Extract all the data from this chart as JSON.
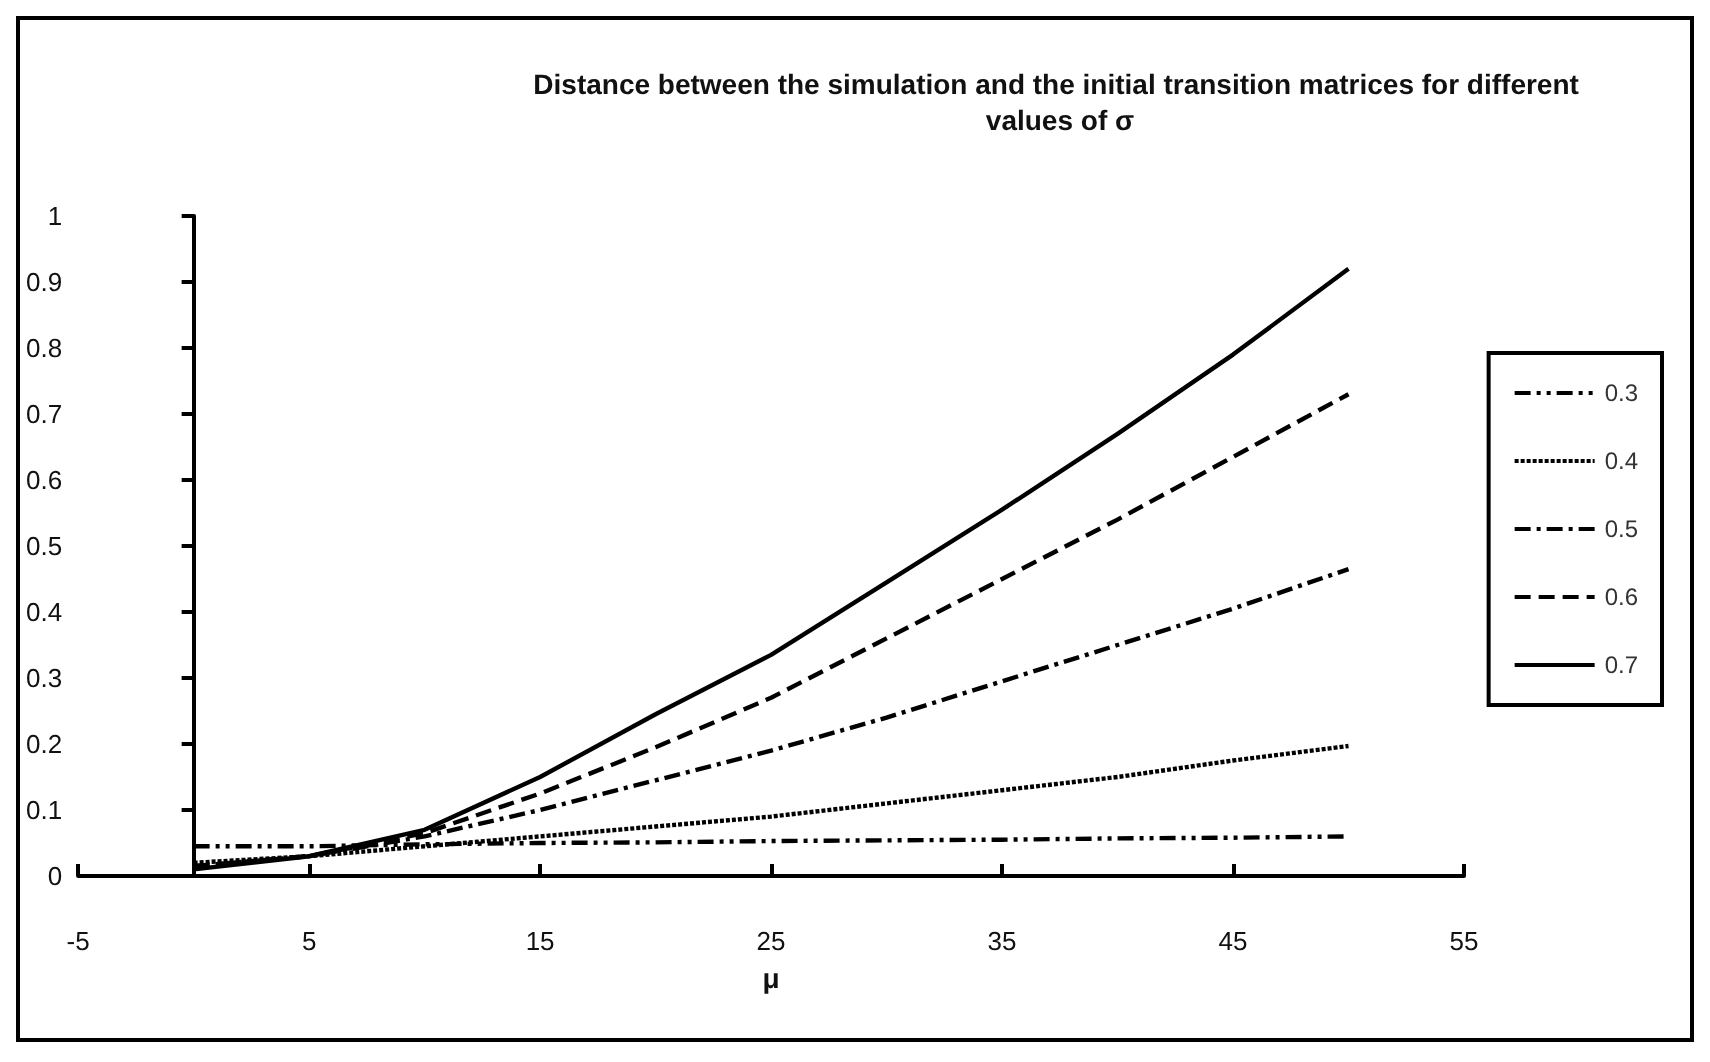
{
  "chart_data": {
    "type": "line",
    "title": "Distance between the simulation and the initial transition matrices for different values of σ",
    "xlabel": "μ",
    "x": [
      0,
      5,
      10,
      15,
      20,
      25,
      30,
      35,
      40,
      45,
      50
    ],
    "series": [
      {
        "name": "0.3",
        "color": "#000000",
        "line_style": "dashdotdot",
        "values": [
          0.045,
          0.045,
          0.048,
          0.05,
          0.051,
          0.053,
          0.054,
          0.055,
          0.057,
          0.058,
          0.06
        ]
      },
      {
        "name": "0.4",
        "color": "#000000",
        "line_style": "dotted",
        "values": [
          0.02,
          0.03,
          0.045,
          0.06,
          0.075,
          0.09,
          0.11,
          0.13,
          0.15,
          0.175,
          0.197
        ]
      },
      {
        "name": "0.5",
        "color": "#000000",
        "line_style": "dashdot",
        "values": [
          0.015,
          0.03,
          0.06,
          0.1,
          0.145,
          0.19,
          0.24,
          0.295,
          0.35,
          0.405,
          0.465
        ]
      },
      {
        "name": "0.6",
        "color": "#000000",
        "line_style": "dashed",
        "values": [
          0.015,
          0.03,
          0.065,
          0.125,
          0.195,
          0.27,
          0.36,
          0.45,
          0.54,
          0.635,
          0.73
        ]
      },
      {
        "name": "0.7",
        "color": "#000000",
        "line_style": "solid",
        "values": [
          0.01,
          0.03,
          0.07,
          0.15,
          0.245,
          0.335,
          0.445,
          0.555,
          0.67,
          0.79,
          0.92
        ]
      }
    ],
    "xlim": [
      -5,
      55
    ],
    "xticks": [
      -5,
      5,
      15,
      25,
      35,
      45,
      55
    ],
    "ylim": [
      0,
      1
    ],
    "yticks": [
      0,
      0.1,
      0.2,
      0.3,
      0.4,
      0.5,
      0.6,
      0.7,
      0.8,
      0.9,
      1
    ],
    "legend": "right",
    "grid": false,
    "marker": "none"
  }
}
